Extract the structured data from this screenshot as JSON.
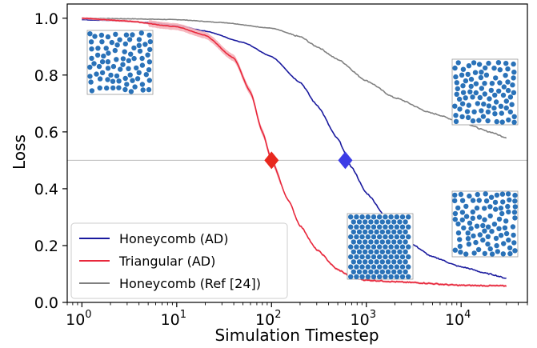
{
  "chart_data": {
    "type": "line",
    "title": "",
    "xlabel": "Simulation Timestep",
    "ylabel": "Loss",
    "xscale": "log",
    "xlim": [
      0.7,
      50000
    ],
    "ylim": [
      0.0,
      1.05
    ],
    "grid": false,
    "legend_placement": "lower-left",
    "x_tick_labels": [
      {
        "value": 1,
        "base": "10",
        "exp": "0"
      },
      {
        "value": 10,
        "base": "10",
        "exp": "1"
      },
      {
        "value": 100,
        "base": "10",
        "exp": "2"
      },
      {
        "value": 1000,
        "base": "10",
        "exp": "3"
      },
      {
        "value": 10000,
        "base": "10",
        "exp": "4"
      }
    ],
    "y_tick_labels": [
      "0.0",
      "0.2",
      "0.4",
      "0.6",
      "0.8",
      "1.0"
    ],
    "y_tick_values": [
      0.0,
      0.2,
      0.4,
      0.6,
      0.8,
      1.0
    ],
    "reference_line": {
      "y": 0.5,
      "color": "#bbbbbb"
    },
    "series": [
      {
        "name": "Honeycomb (AD)",
        "color": "#1a1a9e",
        "points": [
          [
            1,
            0.995
          ],
          [
            2,
            0.992
          ],
          [
            5,
            0.985
          ],
          [
            10,
            0.975
          ],
          [
            20,
            0.955
          ],
          [
            50,
            0.915
          ],
          [
            100,
            0.865
          ],
          [
            200,
            0.775
          ],
          [
            300,
            0.695
          ],
          [
            500,
            0.575
          ],
          [
            700,
            0.475
          ],
          [
            1000,
            0.385
          ],
          [
            2000,
            0.255
          ],
          [
            3000,
            0.205
          ],
          [
            5000,
            0.16
          ],
          [
            10000,
            0.125
          ],
          [
            20000,
            0.1
          ],
          [
            30000,
            0.085
          ]
        ],
        "marker": {
          "x": 600,
          "y": 0.5,
          "color": "#3c3ce6",
          "shape": "diamond"
        }
      },
      {
        "name": "Triangular (AD)",
        "color": "#e8283c",
        "points": [
          [
            1,
            1.0
          ],
          [
            3,
            0.99
          ],
          [
            10,
            0.97
          ],
          [
            20,
            0.94
          ],
          [
            40,
            0.86
          ],
          [
            60,
            0.74
          ],
          [
            80,
            0.6
          ],
          [
            100,
            0.5
          ],
          [
            150,
            0.36
          ],
          [
            200,
            0.27
          ],
          [
            300,
            0.185
          ],
          [
            500,
            0.115
          ],
          [
            700,
            0.09
          ],
          [
            1000,
            0.078
          ],
          [
            3000,
            0.07
          ],
          [
            10000,
            0.06
          ],
          [
            30000,
            0.058
          ]
        ],
        "band_color": "#f5b0b8",
        "marker": {
          "x": 100,
          "y": 0.5,
          "color": "#e8281e",
          "shape": "diamond"
        }
      },
      {
        "name": "Honeycomb (Ref [24])",
        "color": "#808080",
        "points": [
          [
            1,
            1.0
          ],
          [
            3,
            0.998
          ],
          [
            10,
            0.995
          ],
          [
            30,
            0.985
          ],
          [
            100,
            0.965
          ],
          [
            200,
            0.935
          ],
          [
            300,
            0.9
          ],
          [
            500,
            0.855
          ],
          [
            1000,
            0.78
          ],
          [
            2000,
            0.72
          ],
          [
            5000,
            0.665
          ],
          [
            10000,
            0.635
          ],
          [
            20000,
            0.6
          ],
          [
            30000,
            0.58
          ]
        ]
      }
    ],
    "insets": [
      {
        "label": "inset-top-left",
        "color": "#2a72b8",
        "pattern": "random"
      },
      {
        "label": "inset-top-right",
        "color": "#2a72b8",
        "pattern": "random"
      },
      {
        "label": "inset-bottom-center",
        "color": "#2a72b8",
        "pattern": "hexagonal"
      },
      {
        "label": "inset-bottom-right",
        "color": "#2a72b8",
        "pattern": "random"
      }
    ]
  }
}
